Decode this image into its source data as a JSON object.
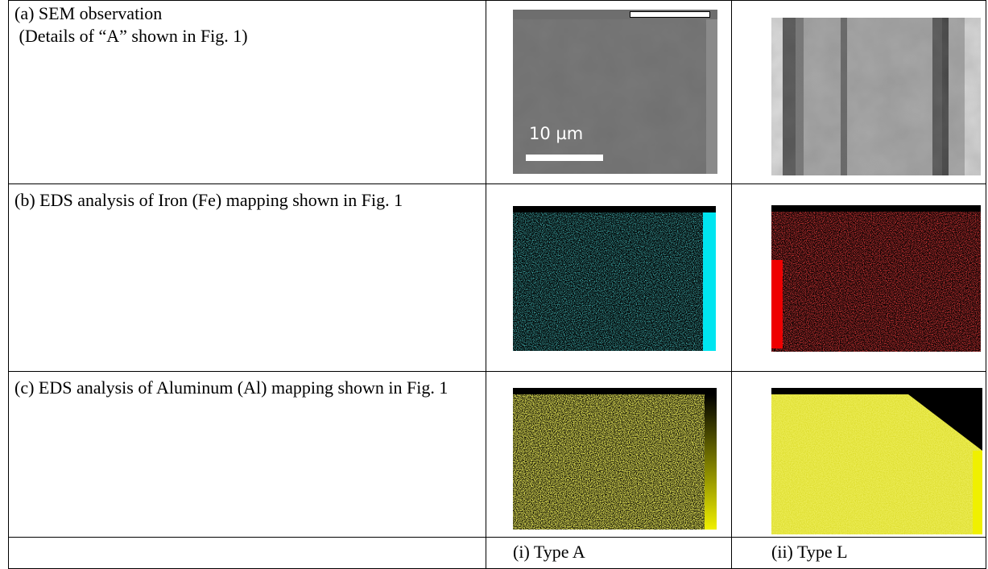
{
  "table": {
    "rows": [
      {
        "label_lines": [
          "(a) SEM observation",
          " (Details of “A” shown in Fig. 1)"
        ],
        "scale_label": "10 µm"
      },
      {
        "label": "(b) EDS analysis of Iron (Fe) mapping shown in Fig. 1"
      },
      {
        "label": "(c) EDS analysis of Aluminum (Al) mapping shown in Fig. 1"
      }
    ],
    "footer": [
      "(i) Type A",
      "(ii) Type L"
    ]
  }
}
